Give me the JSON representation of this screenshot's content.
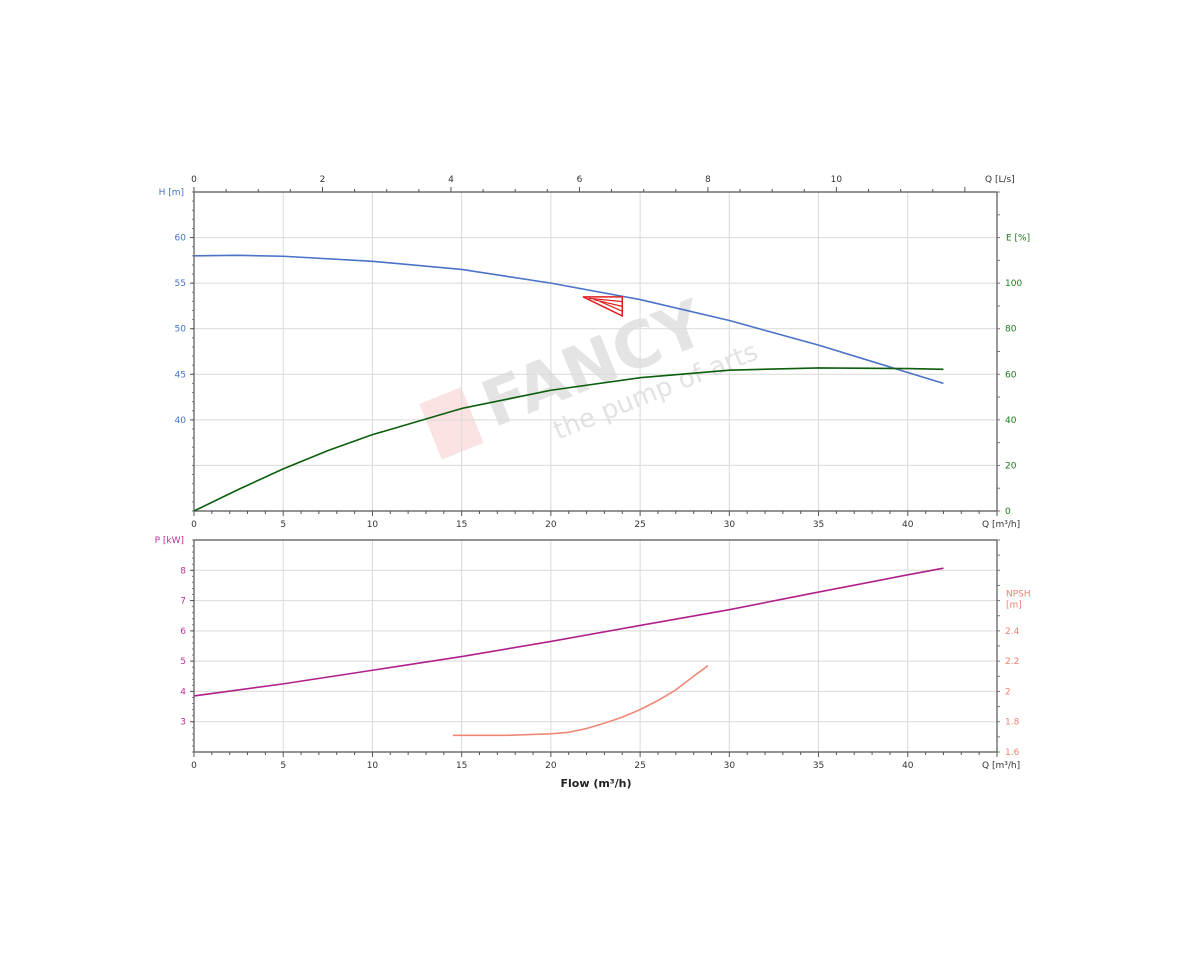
{
  "chart_data": [
    {
      "type": "line",
      "x_axis_bottom": {
        "label": "Q [m³/h]",
        "range": [
          0,
          45
        ],
        "ticks": [
          0,
          5,
          10,
          15,
          20,
          25,
          30,
          35,
          40
        ]
      },
      "x_axis_top": {
        "label": "Q [L/s]",
        "range": [
          0,
          12.5
        ],
        "ticks": [
          0,
          2,
          4,
          6,
          8,
          10
        ]
      },
      "y_axis_left": {
        "label": "H [m]",
        "range": [
          30,
          65
        ],
        "ticks": [
          40,
          45,
          50,
          55,
          60
        ],
        "color": "#4472c4"
      },
      "y_axis_right": {
        "label": "E [%]",
        "range": [
          0,
          140
        ],
        "ticks": [
          0,
          20,
          40,
          60,
          80,
          100
        ],
        "color": "#1a7a1a"
      },
      "grid": true,
      "series": [
        {
          "axis": "left",
          "color": "#4a72c8",
          "x": [
            0,
            2.5,
            5,
            10,
            15,
            20,
            25,
            30,
            35,
            40,
            42
          ],
          "y": [
            58,
            58.05,
            57.95,
            57.4,
            56.5,
            55,
            53.2,
            50.9,
            48.2,
            45.2,
            44
          ]
        },
        {
          "axis": "right",
          "color": "#0b5e0b",
          "x": [
            0,
            2.5,
            5,
            7.5,
            10,
            15,
            20,
            25,
            30,
            35,
            40,
            42
          ],
          "y": [
            0,
            9.5,
            18.5,
            26.5,
            33.5,
            45,
            53,
            58.5,
            61.8,
            62.8,
            62.5,
            62.2
          ]
        }
      ],
      "duty_point_marker": {
        "color": "#e02020",
        "q": [
          21.8,
          24.0
        ],
        "h": [
          51.4,
          53.5
        ]
      },
      "watermark": {
        "brand": "FANCY",
        "slogan": "the pump of arts"
      }
    },
    {
      "type": "line",
      "x_axis_bottom": {
        "label": "Q [m³/h]",
        "range": [
          0,
          45
        ],
        "ticks": [
          0,
          5,
          10,
          15,
          20,
          25,
          30,
          35,
          40
        ]
      },
      "xlabel": "Flow (m³/h)",
      "y_axis_left": {
        "label": "P [kW]",
        "range": [
          2,
          9
        ],
        "ticks": [
          3,
          4,
          5,
          6,
          7,
          8
        ],
        "color": "#c0309a"
      },
      "y_axis_right": {
        "label_line1": "NPSH",
        "label_line2": "[m]",
        "range": [
          1.6,
          3.0
        ],
        "ticks": [
          1.6,
          1.8,
          2,
          2.2,
          2.4
        ],
        "color": "#f08070"
      },
      "grid": true,
      "series": [
        {
          "axis": "left",
          "color": "#b0208a",
          "x": [
            0,
            5,
            10,
            15,
            20,
            25,
            30,
            35,
            40,
            42
          ],
          "y": [
            3.85,
            4.25,
            4.7,
            5.15,
            5.65,
            6.18,
            6.7,
            7.28,
            7.85,
            8.07
          ]
        },
        {
          "axis": "right",
          "color": "#f08878",
          "x": [
            14.5,
            17.5,
            20,
            21,
            22,
            23,
            24,
            25,
            26,
            27,
            28,
            28.8
          ],
          "y": [
            1.71,
            1.71,
            1.72,
            1.73,
            1.755,
            1.79,
            1.83,
            1.88,
            1.94,
            2.01,
            2.1,
            2.17
          ]
        }
      ]
    }
  ]
}
